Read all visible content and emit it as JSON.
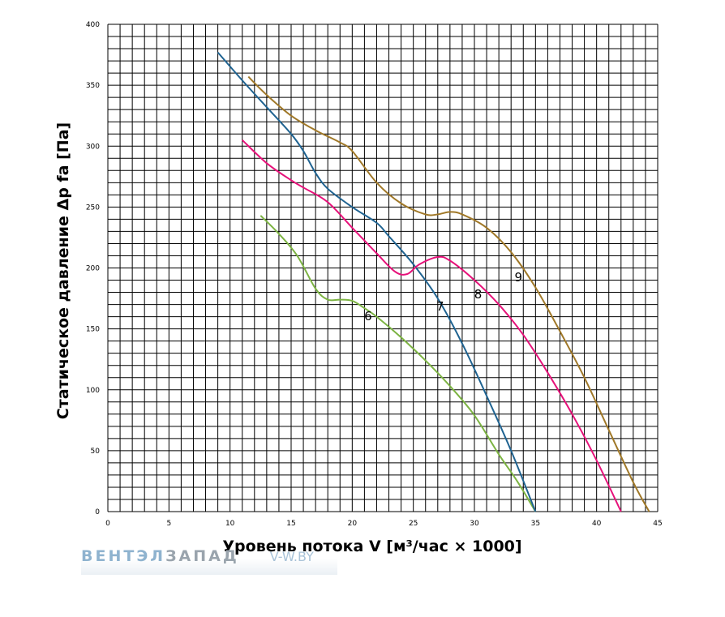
{
  "chart_data": {
    "type": "line",
    "xlabel": "Уровень потока V [м³/час × 1000]",
    "ylabel": "Статическое давление Δp fa [Па]",
    "xlim": [
      0,
      45
    ],
    "ylim": [
      0,
      400
    ],
    "xticks": [
      "0",
      "5",
      "10",
      "15",
      "20",
      "25",
      "30",
      "35",
      "40",
      "45"
    ],
    "yticks": [
      "0",
      "50",
      "100",
      "150",
      "200",
      "250",
      "300",
      "350",
      "400"
    ],
    "grid": true,
    "series": [
      {
        "name": "6",
        "color": "#7cb342",
        "x": [
          12.5,
          14,
          15.5,
          17,
          18,
          19,
          20,
          21,
          22,
          24,
          26,
          28,
          30,
          32,
          33.5,
          35
        ],
        "y": [
          243,
          228,
          210,
          183,
          174,
          174,
          173,
          167,
          160,
          143,
          124,
          103,
          79,
          47,
          25,
          0
        ]
      },
      {
        "name": "7",
        "color": "#1f6391",
        "x": [
          9,
          11,
          13,
          15,
          16,
          17,
          18,
          20,
          22,
          23,
          25,
          27,
          29,
          31,
          33,
          35
        ],
        "y": [
          377,
          354,
          332,
          310,
          296,
          278,
          265,
          250,
          237,
          226,
          203,
          175,
          138,
          95,
          50,
          0
        ]
      },
      {
        "name": "8",
        "color": "#e6127a",
        "x": [
          11,
          13,
          15,
          16,
          18,
          20,
          22,
          23.5,
          24.5,
          25.5,
          27,
          28,
          30,
          32,
          34,
          36,
          38,
          40,
          42
        ],
        "y": [
          305,
          286,
          272,
          266,
          254,
          233,
          212,
          197,
          195,
          203,
          209,
          206,
          190,
          170,
          145,
          114,
          80,
          42,
          0
        ]
      },
      {
        "name": "9",
        "color": "#a07828",
        "x": [
          11.5,
          13,
          15,
          17,
          19,
          20,
          22,
          24,
          26,
          27,
          28,
          29,
          31,
          33,
          35,
          37,
          39,
          41,
          43,
          44.3
        ],
        "y": [
          357,
          342,
          325,
          313,
          303,
          296,
          270,
          253,
          244,
          244,
          246,
          244,
          233,
          213,
          184,
          148,
          110,
          67,
          24,
          0
        ]
      }
    ],
    "curve_labels": [
      {
        "text": "6",
        "x": 21.3,
        "y": 157
      },
      {
        "text": "7",
        "x": 27.2,
        "y": 165
      },
      {
        "text": "8",
        "x": 30.3,
        "y": 175
      },
      {
        "text": "9",
        "x": 33.6,
        "y": 189
      }
    ]
  },
  "watermark": {
    "part1": "ВЕНТЭЛ",
    "part2": "ЗАПАД",
    "part3": "V-W.BY"
  }
}
